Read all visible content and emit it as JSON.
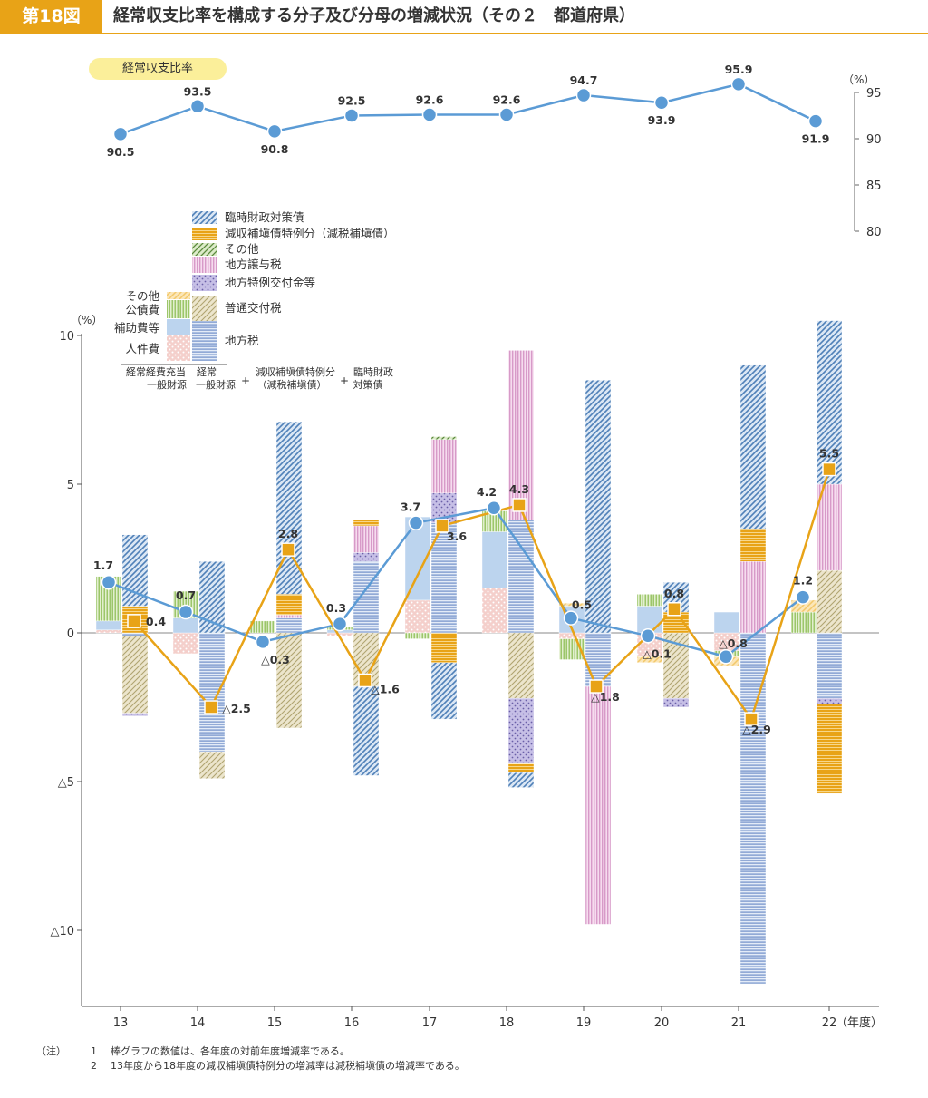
{
  "header": {
    "figure_no": "第18図",
    "title": "経常収支比率を構成する分子及び分母の増減状況（その２　都道府県）"
  },
  "colors": {
    "accent": "#e8a317",
    "line_blue": "#5b9bd5",
    "line_orange": "#e8a317",
    "rinji": "#4f80b8",
    "genshu": "#e8a317",
    "sonota_bunbo": "#5a8a3c",
    "joyo": "#d79ac8",
    "tokurei": "#8a7fc0",
    "futsu": "#c5b98a",
    "chihozei": "#6f8fc8",
    "bunshi_sonota": "#f3c86a",
    "kosaihi": "#9cc66a",
    "hojohi": "#bcd4ee",
    "jinkenhi": "#eaa5a0"
  },
  "chart_data": [
    {
      "type": "line",
      "badge": "経常収支比率",
      "unit": "（%）",
      "ylim": [
        80,
        95
      ],
      "y_ticks": [
        "95",
        "90",
        "85",
        "80"
      ],
      "x": [
        "13",
        "14",
        "15",
        "16",
        "17",
        "18",
        "19",
        "20",
        "21",
        "22"
      ],
      "values": [
        90.5,
        93.5,
        90.8,
        92.5,
        92.6,
        92.6,
        94.7,
        93.9,
        95.9,
        91.9
      ],
      "labels": [
        "90.5",
        "93.5",
        "90.8",
        "92.5",
        "92.6",
        "92.6",
        "94.7",
        "93.9",
        "95.9",
        "91.9"
      ]
    },
    {
      "type": "bar",
      "unit": "（%）",
      "ylim": [
        -12.5,
        10
      ],
      "y_ticks": [
        {
          "v": 10,
          "label": "10"
        },
        {
          "v": 5,
          "label": "5"
        },
        {
          "v": 0,
          "label": "0"
        },
        {
          "v": -5,
          "label": "△5"
        },
        {
          "v": -10,
          "label": "△10"
        }
      ],
      "categories": [
        "13",
        "14",
        "15",
        "16",
        "17",
        "18",
        "19",
        "20",
        "21",
        "22"
      ],
      "x_unit": "（年度）",
      "numerator_series": [
        {
          "key": "jinkenhi",
          "values": [
            0.1,
            -0.7,
            0,
            -0.1,
            1.1,
            1.5,
            -0.2,
            -0.8,
            -0.6,
            0
          ]
        },
        {
          "key": "hojohi",
          "values": [
            0.3,
            0.5,
            0,
            0.1,
            2.8,
            1.9,
            0.9,
            0.9,
            0.7,
            0
          ]
        },
        {
          "key": "kosaihi",
          "values": [
            1.5,
            0.9,
            0.4,
            0.1,
            -0.2,
            0.7,
            -0.7,
            0.4,
            -0.2,
            0.7
          ]
        },
        {
          "key": "bunshi_sonota",
          "values": [
            0,
            0,
            0,
            0,
            0,
            0,
            0.1,
            -0.2,
            -0.3,
            0.4
          ]
        }
      ],
      "denominator_series": [
        {
          "key": "chihozei",
          "values": [
            -0.1,
            -4.0,
            0.5,
            2.4,
            3.7,
            3.8,
            -1.8,
            0,
            -11.8,
            -2.2
          ]
        },
        {
          "key": "futsu",
          "values": [
            -2.6,
            -0.9,
            -3.2,
            -1.8,
            0,
            -2.2,
            0,
            -2.2,
            0,
            2.1
          ]
        },
        {
          "key": "tokurei",
          "values": [
            -0.1,
            0,
            0,
            0.3,
            1.0,
            -2.2,
            0,
            -0.3,
            0,
            -0.2
          ]
        },
        {
          "key": "joyo",
          "values": [
            0,
            0,
            0.1,
            0.9,
            1.8,
            5.7,
            -8.0,
            0,
            2.4,
            2.9
          ]
        },
        {
          "key": "sonota_bunbo",
          "values": [
            0,
            0,
            0,
            0,
            0.1,
            0,
            0,
            0,
            0,
            0
          ]
        },
        {
          "key": "genshu",
          "values": [
            0.9,
            0,
            0.7,
            0.2,
            -1.0,
            -0.3,
            0,
            0.7,
            1.1,
            -3.0
          ]
        },
        {
          "key": "rinji",
          "values": [
            2.4,
            2.4,
            5.8,
            -3.0,
            -1.9,
            -0.5,
            8.5,
            1.0,
            5.5,
            5.5
          ]
        }
      ],
      "lines": [
        {
          "key": "bunshi",
          "values": [
            1.7,
            0.7,
            -0.3,
            0.3,
            3.7,
            4.2,
            0.5,
            -0.1,
            -0.8,
            1.2
          ],
          "labels": [
            "1.7",
            "0.7",
            "△0.3",
            "0.3",
            "3.7",
            "4.2",
            "0.5",
            "△0.1",
            "△0.8",
            "1.2"
          ]
        },
        {
          "key": "bunbo",
          "values": [
            0.4,
            -2.5,
            2.8,
            -1.6,
            3.6,
            4.3,
            -1.8,
            0.8,
            -2.9,
            5.5
          ],
          "labels": [
            "0.4",
            "△2.5",
            "2.8",
            "△1.6",
            "3.6",
            "4.3",
            "△1.8",
            "0.8",
            "△2.9",
            "5.5"
          ]
        }
      ]
    }
  ],
  "legend": {
    "denominator": [
      {
        "key": "rinji",
        "label": "臨時財政対策債"
      },
      {
        "key": "genshu",
        "label": "減収補塡債特例分（減税補塡債）"
      },
      {
        "key": "sonota_bunbo",
        "label": "その他"
      },
      {
        "key": "joyo",
        "label": "地方譲与税"
      },
      {
        "key": "tokurei",
        "label": "地方特例交付金等"
      },
      {
        "key": "futsu",
        "label": "普通交付税"
      },
      {
        "key": "chihozei",
        "label": "地方税"
      }
    ],
    "numerator": [
      {
        "key": "bunshi_sonota",
        "label": "その他"
      },
      {
        "key": "kosaihi",
        "label": "公債費"
      },
      {
        "key": "hojohi",
        "label": "補助費等"
      },
      {
        "key": "jinkenhi",
        "label": "人件費"
      }
    ],
    "formula": {
      "left_1": "経常経費充当",
      "left_2": "一般財源",
      "mid_1": "経常",
      "mid_2": "一般財源",
      "plus": "+",
      "r1_1": "減収補塡債特例分",
      "r1_2": "（減税補塡債）",
      "r2_1": "臨時財政",
      "r2_2": "対策債"
    }
  },
  "notes": {
    "label": "（注）",
    "n1": "1",
    "t1": "棒グラフの数値は、各年度の対前年度増減率である。",
    "n2": "2",
    "t2": "13年度から18年度の減収補塡債特例分の増減率は減税補塡債の増減率である。"
  }
}
